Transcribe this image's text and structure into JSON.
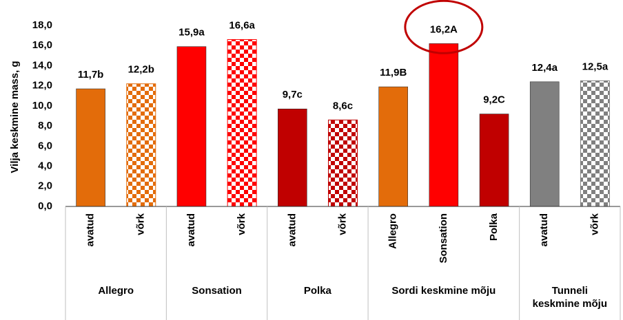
{
  "chart_data": {
    "type": "bar",
    "y_label": "Vilja keskmine mass, g",
    "ylim": [
      0,
      18
    ],
    "yticks": [
      {
        "value": 0,
        "label": "0,0"
      },
      {
        "value": 2,
        "label": "2,0"
      },
      {
        "value": 4,
        "label": "4,0"
      },
      {
        "value": 6,
        "label": "6,0"
      },
      {
        "value": 8,
        "label": "8,0"
      },
      {
        "value": 10,
        "label": "10,0"
      },
      {
        "value": 12,
        "label": "12,0"
      },
      {
        "value": 14,
        "label": "14,0"
      },
      {
        "value": 16,
        "label": "16,0"
      },
      {
        "value": 18,
        "label": "18,0"
      }
    ],
    "grid": false,
    "groups": [
      {
        "label": "Allegro",
        "categories": [
          "avatud",
          "võrk"
        ],
        "values": [
          11.7,
          12.2
        ],
        "value_labels": [
          "11,7b",
          "12,2b"
        ],
        "colors": [
          "#e36c0a",
          "#e36c0a"
        ],
        "patterned": [
          false,
          true
        ]
      },
      {
        "label": "Sonsation",
        "categories": [
          "avatud",
          "võrk"
        ],
        "values": [
          15.9,
          16.6
        ],
        "value_labels": [
          "15,9a",
          "16,6a"
        ],
        "colors": [
          "#ff0000",
          "#ff0000"
        ],
        "patterned": [
          false,
          true
        ]
      },
      {
        "label": "Polka",
        "categories": [
          "avatud",
          "võrk"
        ],
        "values": [
          9.7,
          8.6
        ],
        "value_labels": [
          "9,7c",
          "8,6c"
        ],
        "colors": [
          "#c00000",
          "#c00000"
        ],
        "patterned": [
          false,
          true
        ]
      },
      {
        "label": "Sordi keskmine mõju",
        "categories": [
          "Allegro",
          "Sonsation",
          "Polka"
        ],
        "values": [
          11.9,
          16.2,
          9.2
        ],
        "value_labels": [
          "11,9B",
          "16,2A",
          "9,2C"
        ],
        "colors": [
          "#e36c0a",
          "#ff0000",
          "#c00000"
        ],
        "patterned": [
          false,
          false,
          false
        ],
        "highlighted": [
          false,
          true,
          false
        ]
      },
      {
        "label": "Tunneli\nkeskmine mõju",
        "categories": [
          "avatud",
          "võrk"
        ],
        "values": [
          12.4,
          12.5
        ],
        "value_labels": [
          "12,4a",
          "12,5a"
        ],
        "colors": [
          "#808080",
          "#808080"
        ],
        "patterned": [
          false,
          true
        ]
      }
    ]
  }
}
